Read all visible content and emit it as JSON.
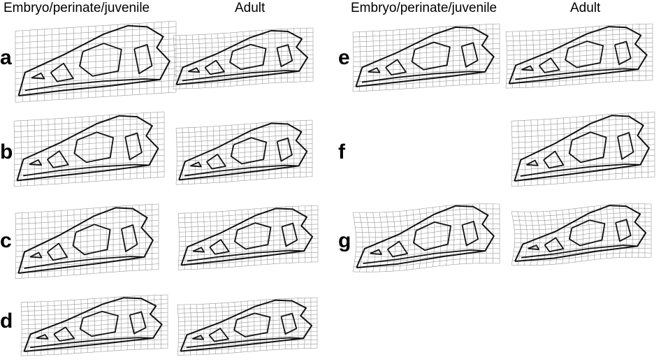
{
  "headers": {
    "left_juvenile": "Embryo/perinate/juvenile",
    "left_adult": "Adult",
    "right_juvenile": "Embryo/perinate/juvenile",
    "right_adult": "Adult"
  },
  "row_labels": [
    "a",
    "b",
    "c",
    "d",
    "e",
    "f",
    "g"
  ],
  "colors": {
    "grid": "#9a9a9a",
    "outline": "#111111",
    "background": "#ffffff"
  }
}
